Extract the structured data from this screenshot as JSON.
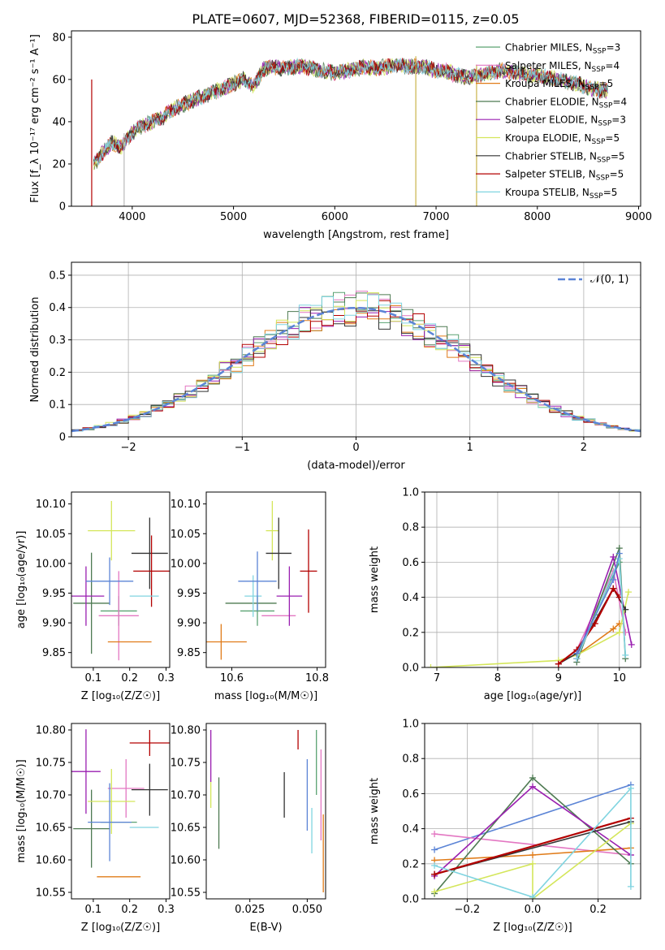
{
  "title": "PLATE=0607, MJD=52368, FIBERID=0115, z=0.05",
  "series": [
    {
      "name": "Chabrier MILES",
      "nssp": "3",
      "color": "#5aa272"
    },
    {
      "name": "Salpeter MILES",
      "nssp": "4",
      "color": "#e377c2"
    },
    {
      "name": "Kroupa MILES",
      "nssp": "5",
      "color": "#e07b18"
    },
    {
      "name": "Chabrier ELODIE",
      "nssp": "4",
      "color": "#4e7a52"
    },
    {
      "name": "Salpeter ELODIE",
      "nssp": "3",
      "color": "#9a1fb0"
    },
    {
      "name": "Kroupa ELODIE",
      "nssp": "5",
      "color": "#d4e65a"
    },
    {
      "name": "Chabrier STELIB",
      "nssp": "5",
      "color": "#333333"
    },
    {
      "name": "Salpeter STELIB",
      "nssp": "5",
      "color": "#b30000"
    },
    {
      "name": "Kroupa STELIB",
      "nssp": "5",
      "color": "#80d4e0"
    }
  ],
  "chart_data": [
    {
      "id": "spectrum",
      "type": "line",
      "xlabel": "wavelength [Angstrom, rest frame]",
      "ylabel": "Flux [f_λ 10⁻¹⁷ erg cm⁻² s⁻¹ A⁻¹]",
      "xlim": [
        3400,
        9020
      ],
      "ylim": [
        0,
        83
      ],
      "xticks": [
        4000,
        5000,
        6000,
        7000,
        8000,
        9000
      ],
      "yticks": [
        0,
        20,
        40,
        60,
        80
      ],
      "legend": "top-right",
      "continuum": {
        "x": [
          3620,
          3700,
          3800,
          3900,
          3950,
          4000,
          4100,
          4200,
          4300,
          4400,
          4500,
          4600,
          4700,
          4800,
          4900,
          5000,
          5100,
          5200,
          5300,
          5400,
          5500,
          5600,
          5700,
          5800,
          5900,
          6000,
          6100,
          6200,
          6300,
          6400,
          6500,
          6600,
          6700,
          6800,
          6900,
          7000,
          7100,
          7200,
          7300,
          7400,
          7500,
          7600,
          7700,
          7800,
          7900,
          8000,
          8100,
          8200,
          8300,
          8400,
          8500,
          8600,
          8700
        ],
        "y": [
          20,
          25,
          30,
          28,
          32,
          35,
          38,
          40,
          42,
          46,
          48,
          50,
          52,
          54,
          56,
          58,
          60,
          57,
          65,
          66,
          65,
          66,
          66,
          65,
          64,
          63,
          64,
          65,
          66,
          65,
          66,
          67,
          66,
          66,
          66,
          64,
          64,
          62,
          61,
          62,
          63,
          64,
          64,
          63,
          62,
          62,
          61,
          60,
          59,
          58,
          56,
          55,
          55
        ]
      },
      "drops": [
        {
          "x": 3920,
          "y": 0
        },
        {
          "x": 6800,
          "y": 0
        },
        {
          "x": 7400,
          "y": 0
        },
        {
          "x": 3600,
          "y": 0
        }
      ]
    },
    {
      "id": "residuals",
      "type": "step",
      "xlabel": "(data-model)/error",
      "ylabel": "Normed distribution",
      "xlim": [
        -2.5,
        2.5
      ],
      "ylim": [
        0,
        0.54
      ],
      "xticks": [
        -2,
        -1,
        0,
        1,
        2
      ],
      "yticks": [
        0.0,
        0.1,
        0.2,
        0.3,
        0.4,
        0.5
      ],
      "gaussian_label": "𝒩(0, 1)",
      "legend": "top-right",
      "bin_width": 0.1,
      "x_start": -2.5
    },
    {
      "id": "age-vs-z",
      "type": "errorbar",
      "xlabel": "Z [log₁₀(Z/Z☉)]",
      "ylabel": "age  [log₁₀(age/yr)]",
      "xlim": [
        0.04,
        0.31
      ],
      "ylim": [
        9.825,
        10.12
      ],
      "xticks": [
        0.1,
        0.2,
        0.3
      ],
      "yticks": [
        9.85,
        9.9,
        9.95,
        10.0,
        10.05,
        10.1
      ],
      "points": [
        {
          "s": 0,
          "x": 0.17,
          "y": 9.92,
          "xe": 0.05,
          "ye": 0.025
        },
        {
          "s": 1,
          "x": 0.17,
          "y": 9.912,
          "xe": 0.055,
          "ye": 0.075
        },
        {
          "s": 2,
          "x": 0.2,
          "y": 9.868,
          "xe": 0.06,
          "ye": 0.0
        },
        {
          "s": 3,
          "x": 0.095,
          "y": 9.933,
          "xe": 0.05,
          "ye": 0.085
        },
        {
          "s": 4,
          "x": 0.08,
          "y": 9.945,
          "xe": 0.05,
          "ye": 0.05
        },
        {
          "s": 5,
          "x": 0.15,
          "y": 10.055,
          "xe": 0.065,
          "ye": 0.05
        },
        {
          "s": 6,
          "x": 0.255,
          "y": 10.017,
          "xe": 0.05,
          "ye": 0.06
        },
        {
          "s": 7,
          "x": 0.26,
          "y": 9.987,
          "xe": 0.05,
          "ye": 0.06
        },
        {
          "s": 8,
          "x": 0.24,
          "y": 9.945,
          "xe": 0.04,
          "ye": 0.0
        },
        {
          "s": 9,
          "x": 0.145,
          "y": 9.97,
          "xe": 0.065,
          "ye": 0.04
        }
      ]
    },
    {
      "id": "age-vs-mass",
      "type": "errorbar",
      "xlabel": "mass [log₁₀(M/M☉)]",
      "ylabel": "",
      "xlim": [
        10.54,
        10.82
      ],
      "ylim": [
        9.825,
        10.12
      ],
      "xticks": [
        10.6,
        10.8
      ],
      "yticks": [
        9.85,
        9.9,
        9.95,
        10.0,
        10.05,
        10.1
      ],
      "points": [
        {
          "s": 0,
          "x": 10.66,
          "y": 9.92,
          "xe": 0.04,
          "ye": 0.025
        },
        {
          "s": 1,
          "x": 10.71,
          "y": 9.912,
          "xe": 0.04,
          "ye": 0.0
        },
        {
          "s": 2,
          "x": 10.575,
          "y": 9.868,
          "xe": 0.06,
          "ye": 0.03
        },
        {
          "s": 3,
          "x": 10.645,
          "y": 9.933,
          "xe": 0.06,
          "ye": 0.0
        },
        {
          "s": 4,
          "x": 10.735,
          "y": 9.945,
          "xe": 0.03,
          "ye": 0.05
        },
        {
          "s": 5,
          "x": 10.695,
          "y": 10.055,
          "xe": 0.015,
          "ye": 0.05
        },
        {
          "s": 6,
          "x": 10.71,
          "y": 10.017,
          "xe": 0.03,
          "ye": 0.06
        },
        {
          "s": 7,
          "x": 10.78,
          "y": 9.987,
          "xe": 0.02,
          "ye": 0.07
        },
        {
          "s": 8,
          "x": 10.65,
          "y": 9.945,
          "xe": 0.02,
          "ye": 0.035
        },
        {
          "s": 9,
          "x": 10.66,
          "y": 9.97,
          "xe": 0.045,
          "ye": 0.05
        }
      ]
    },
    {
      "id": "mass-weight-vs-age",
      "type": "line",
      "xlabel": "age  [log₁₀(age/yr)]",
      "ylabel": "mass weight",
      "xlim": [
        6.8,
        10.35
      ],
      "ylim": [
        0,
        1.0
      ],
      "xticks": [
        7,
        8,
        9,
        10
      ],
      "yticks": [
        0.0,
        0.2,
        0.4,
        0.6,
        0.8,
        1.0
      ],
      "lines": [
        {
          "s": 0,
          "x": [
            9.3,
            9.6,
            10.0
          ],
          "y": [
            0.05,
            0.3,
            0.6
          ]
        },
        {
          "s": 1,
          "x": [
            9.0,
            9.3,
            9.9,
            10.1
          ],
          "y": [
            0.02,
            0.1,
            0.55,
            0.2
          ]
        },
        {
          "s": 2,
          "x": [
            9.3,
            9.9,
            10.0
          ],
          "y": [
            0.07,
            0.22,
            0.25
          ]
        },
        {
          "s": 3,
          "x": [
            9.3,
            10.0,
            10.1
          ],
          "y": [
            0.03,
            0.68,
            0.05
          ]
        },
        {
          "s": 4,
          "x": [
            9.3,
            9.9,
            10.2
          ],
          "y": [
            0.05,
            0.63,
            0.13
          ]
        },
        {
          "s": 5,
          "x": [
            6.9,
            9.0,
            9.3,
            10.0,
            10.15
          ],
          "y": [
            0.0,
            0.04,
            0.07,
            0.2,
            0.43
          ]
        },
        {
          "s": 6,
          "x": [
            9.0,
            9.3,
            9.9,
            10.1
          ],
          "y": [
            0.02,
            0.08,
            0.45,
            0.33
          ]
        },
        {
          "s": 7,
          "x": [
            9.0,
            9.3,
            9.6,
            9.9,
            10.0
          ],
          "y": [
            0.02,
            0.1,
            0.25,
            0.45,
            0.4
          ]
        },
        {
          "s": 8,
          "x": [
            9.3,
            10.0,
            10.1
          ],
          "y": [
            0.05,
            0.62,
            0.07
          ]
        },
        {
          "s": 9,
          "x": [
            9.3,
            9.9,
            10.0
          ],
          "y": [
            0.08,
            0.5,
            0.65
          ]
        }
      ]
    },
    {
      "id": "mass-vs-z",
      "type": "errorbar",
      "xlabel": "Z [log₁₀(Z/Z☉)]",
      "ylabel": "mass [log₁₀(M/M☉)]",
      "xlim": [
        0.04,
        0.31
      ],
      "ylim": [
        10.54,
        10.81
      ],
      "xticks": [
        0.1,
        0.2,
        0.3
      ],
      "yticks": [
        10.55,
        10.6,
        10.65,
        10.7,
        10.75,
        10.8
      ],
      "points": [
        {
          "s": 0,
          "x": 0.17,
          "y": 10.658,
          "xe": 0.05,
          "ye": 0.0
        },
        {
          "s": 1,
          "x": 0.19,
          "y": 10.71,
          "xe": 0.05,
          "ye": 0.045
        },
        {
          "s": 2,
          "x": 0.17,
          "y": 10.574,
          "xe": 0.06,
          "ye": 0.0
        },
        {
          "s": 3,
          "x": 0.095,
          "y": 10.648,
          "xe": 0.05,
          "ye": 0.06
        },
        {
          "s": 4,
          "x": 0.08,
          "y": 10.736,
          "xe": 0.04,
          "ye": 0.065
        },
        {
          "s": 5,
          "x": 0.15,
          "y": 10.69,
          "xe": 0.065,
          "ye": 0.05
        },
        {
          "s": 6,
          "x": 0.255,
          "y": 10.708,
          "xe": 0.05,
          "ye": 0.04
        },
        {
          "s": 7,
          "x": 0.255,
          "y": 10.78,
          "xe": 0.055,
          "ye": 0.02
        },
        {
          "s": 8,
          "x": 0.24,
          "y": 10.65,
          "xe": 0.04,
          "ye": 0.0
        },
        {
          "s": 9,
          "x": 0.145,
          "y": 10.658,
          "xe": 0.06,
          "ye": 0.06
        }
      ]
    },
    {
      "id": "mass-vs-ebv",
      "type": "errorbar",
      "xlabel": "E(B-V)",
      "ylabel": "",
      "xlim": [
        0.006,
        0.058
      ],
      "ylim": [
        10.54,
        10.81
      ],
      "xticks": [
        0.025,
        0.05
      ],
      "yticks": [
        10.55,
        10.6,
        10.65,
        10.7,
        10.75,
        10.8
      ],
      "points": [
        {
          "s": 0,
          "x": 0.054,
          "y": 10.75,
          "xe": 0.0,
          "ye": 0.05
        },
        {
          "s": 1,
          "x": 0.056,
          "y": 10.7,
          "xe": 0.0,
          "ye": 0.07
        },
        {
          "s": 2,
          "x": 0.057,
          "y": 10.61,
          "xe": 0.0,
          "ye": 0.06
        },
        {
          "s": 3,
          "x": 0.0115,
          "y": 10.672,
          "xe": 0.0,
          "ye": 0.055
        },
        {
          "s": 4,
          "x": 0.008,
          "y": 10.76,
          "xe": 0.0,
          "ye": 0.04
        },
        {
          "s": 5,
          "x": 0.008,
          "y": 10.7,
          "xe": 0.0,
          "ye": 0.02
        },
        {
          "s": 6,
          "x": 0.04,
          "y": 10.7,
          "xe": 0.0,
          "ye": 0.035
        },
        {
          "s": 7,
          "x": 0.046,
          "y": 10.785,
          "xe": 0.0,
          "ye": 0.015
        },
        {
          "s": 8,
          "x": 0.052,
          "y": 10.645,
          "xe": 0.0,
          "ye": 0.035
        },
        {
          "s": 9,
          "x": 0.05,
          "y": 10.7,
          "xe": 0.0,
          "ye": 0.055
        }
      ]
    },
    {
      "id": "mass-weight-vs-z",
      "type": "line",
      "xlabel": "Z [log₁₀(Z/Z☉)]",
      "ylabel": "mass weight",
      "xlim": [
        -0.33,
        0.33
      ],
      "ylim": [
        0,
        1.0
      ],
      "xticks": [
        -0.2,
        0.0,
        0.2
      ],
      "yticks": [
        0.0,
        0.2,
        0.4,
        0.6,
        0.8,
        1.0
      ],
      "lines": [
        {
          "s": 9,
          "x": [
            -0.3,
            0.3
          ],
          "y": [
            0.28,
            0.65
          ]
        },
        {
          "s": 1,
          "x": [
            -0.3,
            0.3
          ],
          "y": [
            0.37,
            0.25
          ]
        },
        {
          "s": 2,
          "x": [
            -0.3,
            0.0,
            0.3
          ],
          "y": [
            0.22,
            0.25,
            0.29
          ]
        },
        {
          "s": 3,
          "x": [
            -0.3,
            0.0,
            0.3
          ],
          "y": [
            0.03,
            0.69,
            0.2
          ]
        },
        {
          "s": 4,
          "x": [
            -0.3,
            0.0,
            0.3
          ],
          "y": [
            0.13,
            0.64,
            0.25
          ]
        },
        {
          "s": 5,
          "x": [
            -0.3,
            0.0,
            0.0,
            0.3
          ],
          "y": [
            0.04,
            0.2,
            0.0,
            0.43
          ]
        },
        {
          "s": 6,
          "x": [
            -0.3,
            0.3
          ],
          "y": [
            0.14,
            0.44
          ]
        },
        {
          "s": 7,
          "x": [
            -0.3,
            0.3
          ],
          "y": [
            0.14,
            0.46
          ]
        },
        {
          "s": 8,
          "x": [
            -0.3,
            0.0,
            0.3,
            0.3
          ],
          "y": [
            0.19,
            0.01,
            0.63,
            0.07
          ]
        }
      ]
    }
  ]
}
